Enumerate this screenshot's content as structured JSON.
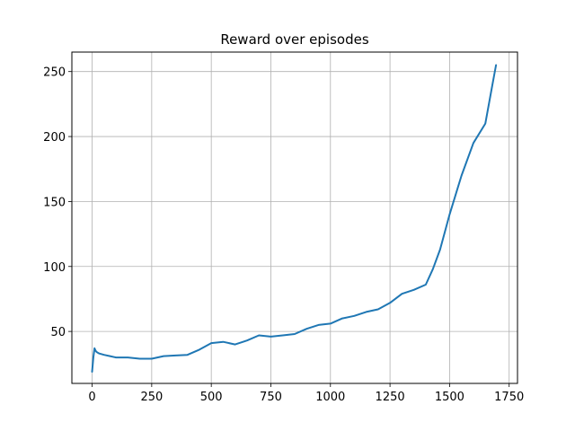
{
  "chart_data": {
    "type": "line",
    "title": "Reward over episodes",
    "xlabel": "",
    "ylabel": "",
    "xlim": [
      -85,
      1785
    ],
    "ylim": [
      10,
      265
    ],
    "x_ticks": [
      0,
      250,
      500,
      750,
      1000,
      1250,
      1500,
      1750
    ],
    "y_ticks": [
      50,
      100,
      150,
      200,
      250
    ],
    "grid": true,
    "line_color": "#1f77b4",
    "series": [
      {
        "x": [
          0,
          5,
          10,
          15,
          20,
          30,
          50,
          75,
          100,
          150,
          200,
          250,
          300,
          350,
          400,
          450,
          500,
          550,
          600,
          650,
          700,
          750,
          800,
          850,
          900,
          950,
          1000,
          1050,
          1100,
          1150,
          1200,
          1250,
          1300,
          1350,
          1400,
          1430,
          1460,
          1500,
          1550,
          1600,
          1650,
          1680,
          1695
        ],
        "y": [
          19,
          30,
          37,
          35,
          34,
          33,
          32,
          31,
          30,
          30,
          29,
          29,
          31,
          31.5,
          32,
          36,
          41,
          42,
          40,
          43,
          47,
          46,
          47,
          48,
          52,
          55,
          56,
          60,
          62,
          65,
          67,
          72,
          79,
          82,
          86,
          98,
          113,
          140,
          170,
          195,
          210,
          240,
          255
        ]
      }
    ]
  }
}
